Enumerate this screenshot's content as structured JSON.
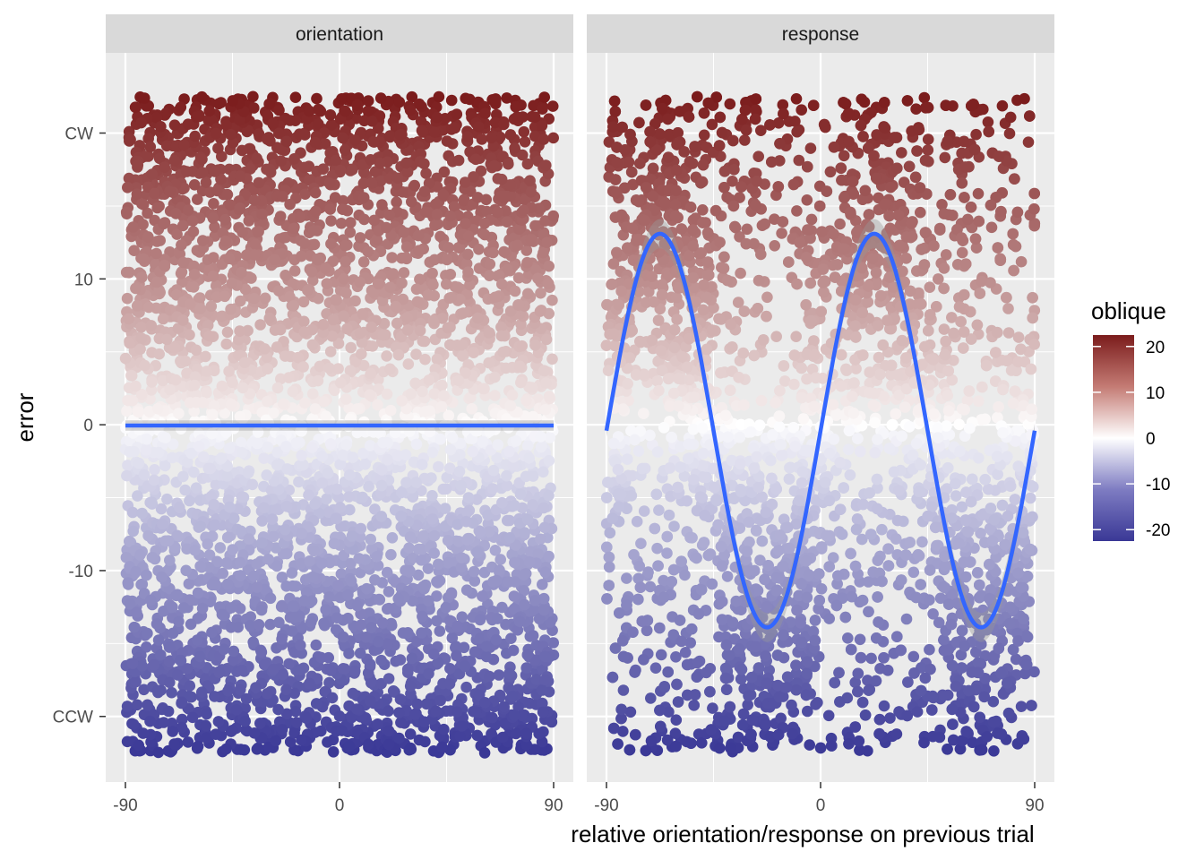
{
  "chart_data": {
    "type": "scatter",
    "facets": [
      {
        "title": "orientation",
        "fit_amplitude": 0.0,
        "fit_offset": -0.05
      },
      {
        "title": "response",
        "fit_amplitude": 13.5,
        "fit_offset": -0.4
      }
    ],
    "xlabel": "relative orientation/response on previous trial",
    "ylabel": "error",
    "xlim": [
      -90,
      90
    ],
    "ylim": [
      -24.5,
      25.5
    ],
    "x_ticks": [
      {
        "value": -90,
        "label": "-90"
      },
      {
        "value": 0,
        "label": "0"
      },
      {
        "value": 90,
        "label": "90"
      }
    ],
    "y_ticks": [
      {
        "value": 20,
        "label": "CW"
      },
      {
        "value": 10,
        "label": "10"
      },
      {
        "value": 0,
        "label": "0"
      },
      {
        "value": -10,
        "label": "-10"
      },
      {
        "value": -20,
        "label": "CCW"
      }
    ],
    "point_y_range": [
      -22.5,
      22.5
    ],
    "legend": {
      "title": "oblique",
      "position": "right",
      "range": [
        -22.5,
        22.5
      ],
      "breaks": [
        {
          "value": 20,
          "label": "20"
        },
        {
          "value": 10,
          "label": "10"
        },
        {
          "value": 0,
          "label": "0"
        },
        {
          "value": -10,
          "label": "-10"
        },
        {
          "value": -20,
          "label": "-20"
        }
      ]
    },
    "colors": {
      "high": "#7b1c1c",
      "mid": "#ffffff",
      "low": "#3a3896",
      "fit_line": "#3366ff",
      "panel_bg": "#ebebeb",
      "strip_bg": "#d9d9d9",
      "grid": "#ffffff"
    },
    "grid": true
  }
}
